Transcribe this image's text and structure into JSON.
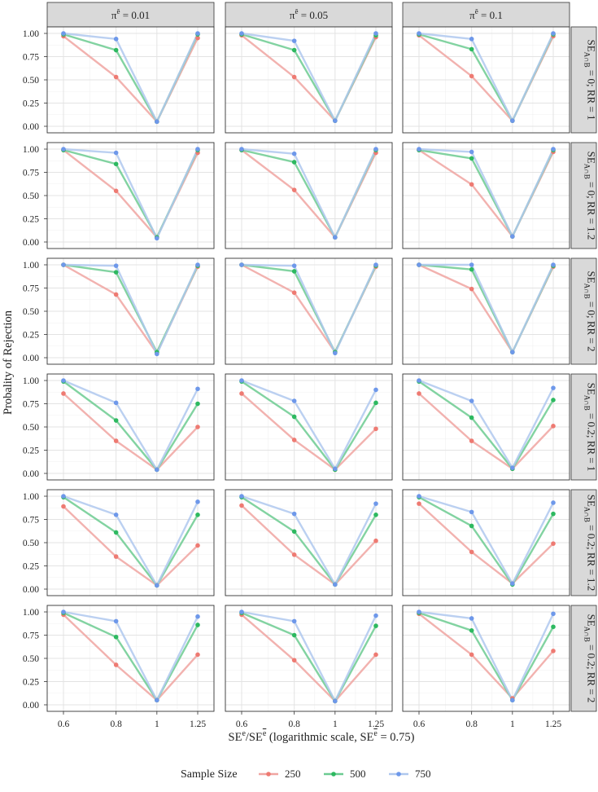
{
  "chart_data": {
    "type": "line",
    "panel_columns": [
      {
        "prefix": "π",
        "sup": "ē",
        "suffix": " = 0.01"
      },
      {
        "prefix": "π",
        "sup": "ē",
        "suffix": " = 0.05"
      },
      {
        "prefix": "π",
        "sup": "ē",
        "suffix": " = 0.1"
      }
    ],
    "panel_rows": [
      {
        "se": "SE",
        "sub": "A∩B",
        "rest": " = 0; RR = 1"
      },
      {
        "se": "SE",
        "sub": "A∩B",
        "rest": " = 0; RR = 1.2"
      },
      {
        "se": "SE",
        "sub": "A∩B",
        "rest": " = 0; RR = 2"
      },
      {
        "se": "SE",
        "sub": "A∩B",
        "rest": " = 0.2; RR = 1"
      },
      {
        "se": "SE",
        "sub": "A∩B",
        "rest": " = 0.2; RR = 1.2"
      },
      {
        "se": "SE",
        "sub": "A∩B",
        "rest": " = 0.2; RR = 2"
      }
    ],
    "x": [
      0.6,
      0.8,
      1,
      1.25
    ],
    "x_tick_labels": [
      "0.6",
      "0.8",
      "1",
      "1.25"
    ],
    "x_scale": "log",
    "y_ticks": [
      0,
      0.25,
      0.5,
      0.75,
      1
    ],
    "y_tick_labels": [
      "0.00",
      "0.25",
      "0.50",
      "0.75",
      "1.00"
    ],
    "ylim": [
      0,
      1
    ],
    "ylabel": "Probality of Rejection",
    "xlabel": {
      "p1": "SE",
      "sup1": "e",
      "p2": "/SE",
      "sup2": "e",
      "p3": " (logarithmic scale, SE",
      "sup3": "e",
      "p4": " = 0.75)"
    },
    "grid": true,
    "legend": {
      "title": "Sample Size",
      "position": "bottom",
      "entries": [
        {
          "name": "250",
          "color": "#F0A5A1",
          "point_color": "#EE7A72"
        },
        {
          "name": "500",
          "color": "#6CCB91",
          "point_color": "#2DB960"
        },
        {
          "name": "750",
          "color": "#AFC8EE",
          "point_color": "#6E98EA"
        }
      ]
    },
    "panels": [
      [
        [
          [
            0.97,
            0.53,
            0.05,
            0.95
          ],
          [
            0.99,
            0.82,
            0.05,
            0.99
          ],
          [
            1.0,
            0.94,
            0.05,
            1.0
          ]
        ],
        [
          [
            0.98,
            0.53,
            0.06,
            0.96
          ],
          [
            0.99,
            0.82,
            0.06,
            0.98
          ],
          [
            1.0,
            0.92,
            0.06,
            1.0
          ]
        ],
        [
          [
            0.98,
            0.54,
            0.06,
            0.97
          ],
          [
            0.99,
            0.83,
            0.06,
            0.99
          ],
          [
            1.0,
            0.94,
            0.06,
            1.0
          ]
        ]
      ],
      [
        [
          [
            0.99,
            0.55,
            0.05,
            0.96
          ],
          [
            0.99,
            0.84,
            0.05,
            0.99
          ],
          [
            1.0,
            0.96,
            0.04,
            1.0
          ]
        ],
        [
          [
            0.99,
            0.56,
            0.05,
            0.96
          ],
          [
            0.99,
            0.86,
            0.05,
            0.99
          ],
          [
            1.0,
            0.95,
            0.05,
            1.0
          ]
        ],
        [
          [
            0.99,
            0.62,
            0.06,
            0.97
          ],
          [
            0.99,
            0.9,
            0.06,
            0.99
          ],
          [
            1.0,
            0.97,
            0.06,
            1.0
          ]
        ]
      ],
      [
        [
          [
            1.0,
            0.68,
            0.05,
            0.98
          ],
          [
            1.0,
            0.92,
            0.06,
            0.99
          ],
          [
            1.0,
            0.99,
            0.04,
            1.0
          ]
        ],
        [
          [
            1.0,
            0.7,
            0.06,
            0.98
          ],
          [
            1.0,
            0.93,
            0.06,
            0.99
          ],
          [
            1.0,
            0.99,
            0.05,
            1.0
          ]
        ],
        [
          [
            1.0,
            0.74,
            0.06,
            0.98
          ],
          [
            1.0,
            0.95,
            0.06,
            0.99
          ],
          [
            1.0,
            1.0,
            0.06,
            1.0
          ]
        ]
      ],
      [
        [
          [
            0.86,
            0.35,
            0.04,
            0.5
          ],
          [
            0.99,
            0.57,
            0.04,
            0.75
          ],
          [
            1.0,
            0.76,
            0.04,
            0.91
          ]
        ],
        [
          [
            0.86,
            0.36,
            0.04,
            0.48
          ],
          [
            0.99,
            0.61,
            0.04,
            0.76
          ],
          [
            1.0,
            0.78,
            0.05,
            0.9
          ]
        ],
        [
          [
            0.86,
            0.35,
            0.05,
            0.51
          ],
          [
            0.99,
            0.6,
            0.05,
            0.79
          ],
          [
            1.0,
            0.78,
            0.06,
            0.92
          ]
        ]
      ],
      [
        [
          [
            0.89,
            0.35,
            0.04,
            0.47
          ],
          [
            0.99,
            0.61,
            0.04,
            0.8
          ],
          [
            1.0,
            0.8,
            0.04,
            0.94
          ]
        ],
        [
          [
            0.9,
            0.37,
            0.05,
            0.52
          ],
          [
            0.99,
            0.62,
            0.05,
            0.8
          ],
          [
            1.0,
            0.81,
            0.05,
            0.92
          ]
        ],
        [
          [
            0.92,
            0.4,
            0.06,
            0.49
          ],
          [
            0.99,
            0.68,
            0.05,
            0.81
          ],
          [
            1.0,
            0.83,
            0.06,
            0.93
          ]
        ]
      ],
      [
        [
          [
            0.97,
            0.43,
            0.05,
            0.54
          ],
          [
            0.99,
            0.73,
            0.05,
            0.86
          ],
          [
            1.0,
            0.9,
            0.05,
            0.95
          ]
        ],
        [
          [
            0.97,
            0.48,
            0.04,
            0.54
          ],
          [
            0.99,
            0.75,
            0.04,
            0.85
          ],
          [
            1.0,
            0.9,
            0.04,
            0.96
          ]
        ],
        [
          [
            0.98,
            0.54,
            0.07,
            0.58
          ],
          [
            0.99,
            0.8,
            0.05,
            0.84
          ],
          [
            1.0,
            0.93,
            0.05,
            0.98
          ]
        ]
      ]
    ]
  }
}
